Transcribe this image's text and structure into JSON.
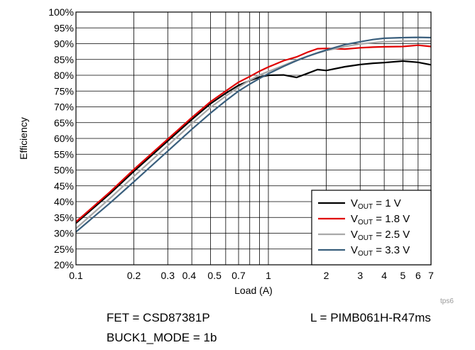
{
  "chart_data": {
    "type": "line",
    "xlabel": "Load (A)",
    "ylabel": "Efficiency",
    "x_scale": "log",
    "xlim": [
      0.1,
      7
    ],
    "ylim": [
      20,
      100
    ],
    "y_ticks": [
      20,
      25,
      30,
      35,
      40,
      45,
      50,
      55,
      60,
      65,
      70,
      75,
      80,
      85,
      90,
      95,
      100
    ],
    "y_tick_labels": [
      "20%",
      "25%",
      "30%",
      "35%",
      "40%",
      "45%",
      "50%",
      "55%",
      "60%",
      "65%",
      "70%",
      "75%",
      "80%",
      "85%",
      "90%",
      "95%",
      "100%"
    ],
    "x_tick_labels": [
      {
        "value": 0.1,
        "label": "0.1"
      },
      {
        "value": 0.2,
        "label": "0.2"
      },
      {
        "value": 0.3,
        "label": "0.3"
      },
      {
        "value": 0.4,
        "label": "0.4"
      },
      {
        "value": 0.5,
        "label": "0.5"
      },
      {
        "value": 0.7,
        "label": "0.7"
      },
      {
        "value": 1,
        "label": "1"
      },
      {
        "value": 2,
        "label": "2"
      },
      {
        "value": 3,
        "label": "3"
      },
      {
        "value": 4,
        "label": "4"
      },
      {
        "value": 5,
        "label": "5"
      },
      {
        "value": 6,
        "label": "6"
      },
      {
        "value": 7,
        "label": "7"
      }
    ],
    "x_gridlines": [
      0.1,
      0.2,
      0.3,
      0.4,
      0.5,
      0.6,
      0.7,
      0.8,
      0.9,
      1,
      2,
      3,
      4,
      5,
      6,
      7
    ],
    "grid": true,
    "legend_position": "bottom-right",
    "series": [
      {
        "name_main": "V",
        "name_sub": "OUT",
        "name_rest": " = 1 V",
        "color": "#000000",
        "x": [
          0.1,
          0.15,
          0.2,
          0.3,
          0.4,
          0.5,
          0.6,
          0.7,
          0.8,
          0.9,
          1.0,
          1.2,
          1.4,
          1.6,
          1.8,
          2.0,
          2.5,
          3.0,
          3.5,
          4.0,
          5.0,
          6.0,
          7.0
        ],
        "y": [
          33.2,
          42.5,
          49.6,
          59.2,
          66.0,
          71.0,
          74.3,
          76.8,
          78.3,
          79.4,
          80.0,
          80.1,
          79.3,
          80.6,
          81.8,
          81.5,
          82.7,
          83.4,
          83.8,
          84.0,
          84.5,
          84.1,
          83.3
        ]
      },
      {
        "name_main": "V",
        "name_sub": "OUT",
        "name_rest": " = 1.8 V",
        "color": "#e00000",
        "x": [
          0.1,
          0.15,
          0.2,
          0.3,
          0.4,
          0.5,
          0.6,
          0.7,
          0.8,
          0.9,
          1.0,
          1.2,
          1.4,
          1.6,
          1.8,
          2.0,
          2.5,
          3.0,
          3.5,
          4.0,
          5.0,
          6.0,
          7.0
        ],
        "y": [
          33.6,
          43.0,
          50.2,
          59.8,
          66.6,
          71.6,
          75.0,
          77.8,
          79.6,
          81.3,
          82.6,
          84.6,
          85.8,
          87.3,
          88.4,
          88.5,
          88.3,
          88.7,
          88.9,
          89.0,
          89.1,
          89.5,
          89.1
        ]
      },
      {
        "name_main": "V",
        "name_sub": "OUT",
        "name_rest": " = 2.5 V",
        "color": "#a8a8a8",
        "x": [
          0.1,
          0.15,
          0.2,
          0.3,
          0.4,
          0.5,
          0.6,
          0.7,
          0.8,
          0.9,
          1.0,
          1.2,
          1.4,
          1.6,
          1.8,
          2.0,
          2.5,
          3.0,
          3.5,
          4.0,
          5.0,
          6.0,
          7.0
        ],
        "y": [
          31.5,
          41.0,
          48.0,
          57.7,
          64.7,
          69.8,
          73.4,
          76.2,
          78.4,
          80.1,
          81.2,
          83.1,
          84.8,
          86.0,
          87.0,
          87.8,
          89.1,
          89.9,
          90.3,
          90.6,
          90.8,
          90.9,
          90.8
        ]
      },
      {
        "name_main": "V",
        "name_sub": "OUT",
        "name_rest": " = 3.3 V",
        "color": "#3a5f7d",
        "x": [
          0.1,
          0.15,
          0.2,
          0.3,
          0.4,
          0.5,
          0.6,
          0.7,
          0.8,
          0.9,
          1.0,
          1.2,
          1.4,
          1.6,
          1.8,
          2.0,
          2.5,
          3.0,
          3.5,
          4.0,
          5.0,
          6.0,
          7.0
        ],
        "y": [
          30.4,
          39.5,
          46.3,
          56.0,
          62.9,
          68.0,
          71.9,
          75.0,
          77.2,
          79.0,
          80.5,
          82.8,
          84.6,
          86.0,
          87.1,
          88.0,
          89.7,
          90.6,
          91.3,
          91.7,
          91.9,
          92.0,
          91.9
        ]
      }
    ]
  },
  "annotations": {
    "source_tag": "tps6",
    "fet": "FET = CSD87381P",
    "inductor": "L = PIMB061H-R47ms",
    "mode": "BUCK1_MODE = 1b"
  }
}
